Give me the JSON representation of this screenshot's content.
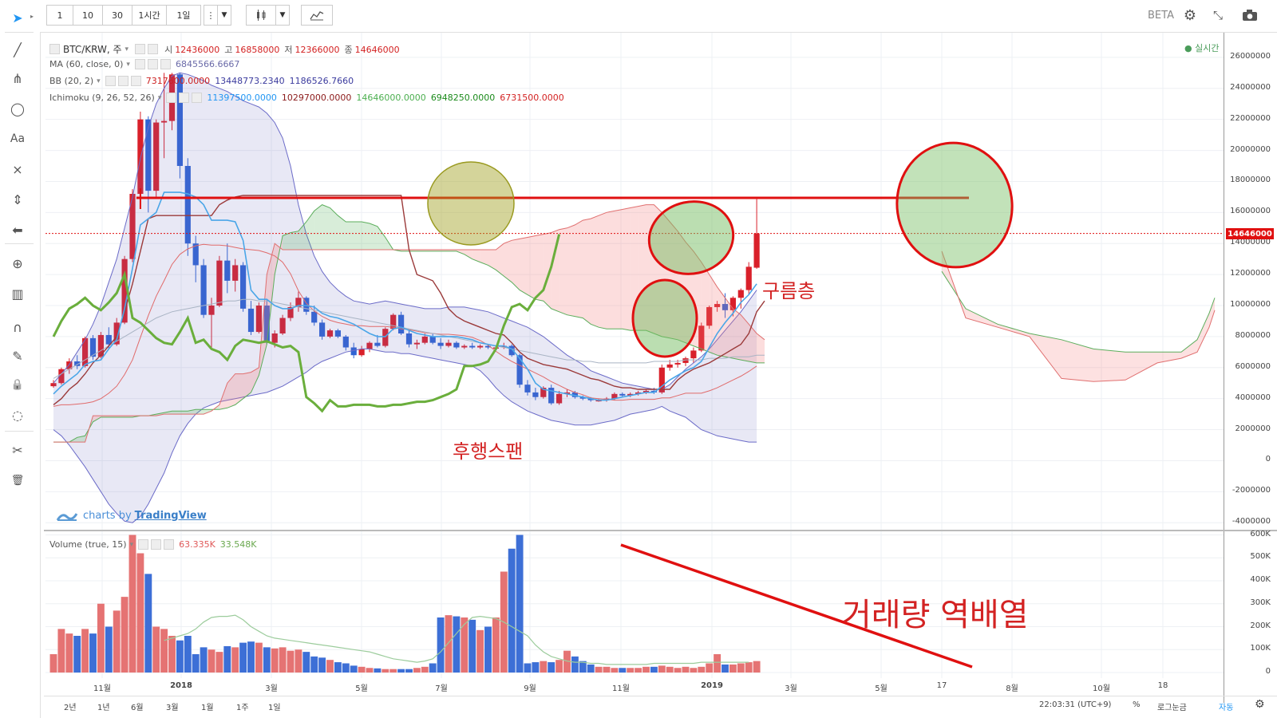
{
  "toolbar": {
    "intervals": [
      "1",
      "10",
      "30",
      "1시간",
      "1일"
    ],
    "beta_label": "BETA"
  },
  "left_tools": [
    "cursor-icon",
    "trend-line-icon",
    "pitchfork-icon",
    "ellipse-icon",
    "text-icon",
    "pattern-icon",
    "measure-icon",
    "arrow-icon",
    "zoom-icon",
    "ruler-icon",
    "magnet-icon",
    "pencil-icon",
    "lock-icon",
    "eye-off-icon",
    "tools-icon",
    "trash-icon"
  ],
  "legend": {
    "symbol": "BTC/KRW, 주",
    "ohlc": [
      {
        "label": "시",
        "value": "12436000"
      },
      {
        "label": "고",
        "value": "16858000"
      },
      {
        "label": "저",
        "value": "12366000"
      },
      {
        "label": "종",
        "value": "14646000"
      }
    ],
    "ma_label": "MA (60, close, 0)",
    "ma_value": "6845566.6667",
    "bb_label": "BB (20, 2)",
    "bb_values": [
      "7317600.0000",
      "13448773.2340",
      "1186526.7660"
    ],
    "ichimoku_label": "Ichimoku (9, 26, 52, 26)",
    "ichimoku_values": [
      "11397500.0000",
      "10297000.0000",
      "14646000.0000",
      "6948250.0000",
      "6731500.0000"
    ],
    "realtime": "실시간",
    "volume_label": "Volume (true, 15)",
    "volume_values": [
      "63.335K",
      "33.548K"
    ]
  },
  "price_axis": [
    "26000000",
    "24000000",
    "22000000",
    "20000000",
    "18000000",
    "16000000",
    "14000000",
    "12000000",
    "10000000",
    "8000000",
    "6000000",
    "4000000",
    "2000000",
    "0",
    "-2000000",
    "-4000000"
  ],
  "current_price": "14646000",
  "volume_axis": [
    "600K",
    "500K",
    "400K",
    "300K",
    "200K",
    "100K",
    "0"
  ],
  "time_axis": [
    {
      "label": "11월",
      "x": 128
    },
    {
      "label": "2018",
      "x": 227
    },
    {
      "label": "3월",
      "x": 340
    },
    {
      "label": "5월",
      "x": 453
    },
    {
      "label": "7월",
      "x": 553
    },
    {
      "label": "9월",
      "x": 664
    },
    {
      "label": "11월",
      "x": 778
    },
    {
      "label": "2019",
      "x": 892
    },
    {
      "label": "3월",
      "x": 991
    },
    {
      "label": "5월",
      "x": 1104
    },
    {
      "label": "17",
      "x": 1180
    },
    {
      "label": "8월",
      "x": 1268
    },
    {
      "label": "10월",
      "x": 1380
    },
    {
      "label": "18",
      "x": 1457
    }
  ],
  "ranges": [
    "2년",
    "1년",
    "6월",
    "3월",
    "1월",
    "1주",
    "1일"
  ],
  "bottom_right": {
    "time": "22:03:31 (UTC+9)",
    "percent": "%",
    "log": "로그눈금",
    "auto": "자동"
  },
  "watermark": {
    "prefix": "charts by",
    "brand": "TradingView"
  },
  "annotations": {
    "cloud": "구름층",
    "lagging": "후행스팬",
    "volume": "거래량 역배열"
  },
  "colors": {
    "up": "#e05a5a",
    "down": "#3d6fd6",
    "red": "#e01010",
    "green": "#6aa84f"
  }
}
